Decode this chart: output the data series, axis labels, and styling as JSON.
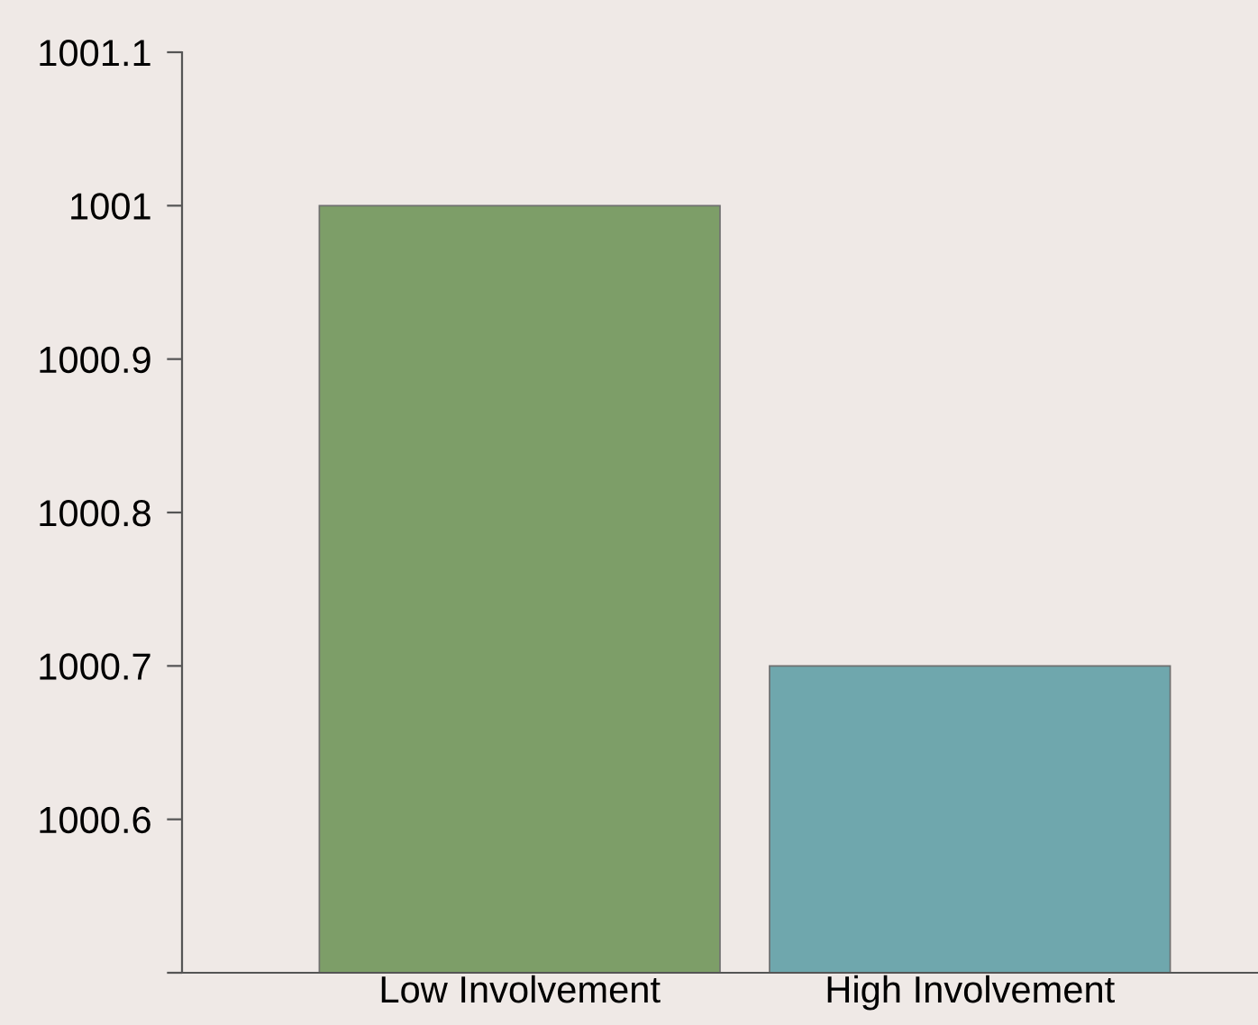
{
  "chart_data": {
    "type": "bar",
    "categories": [
      "Low Involvement",
      "High Involvement"
    ],
    "values": [
      1001,
      1000.7
    ],
    "colors": [
      "#7d9e68",
      "#6fa7ad"
    ],
    "ylim": [
      1000.5,
      1001.1
    ],
    "yticks": [
      {
        "value": 1000.5,
        "label": null
      },
      1000.6,
      1000.7,
      1000.8,
      1000.9,
      1001,
      1001.1
    ],
    "grid": false
  }
}
